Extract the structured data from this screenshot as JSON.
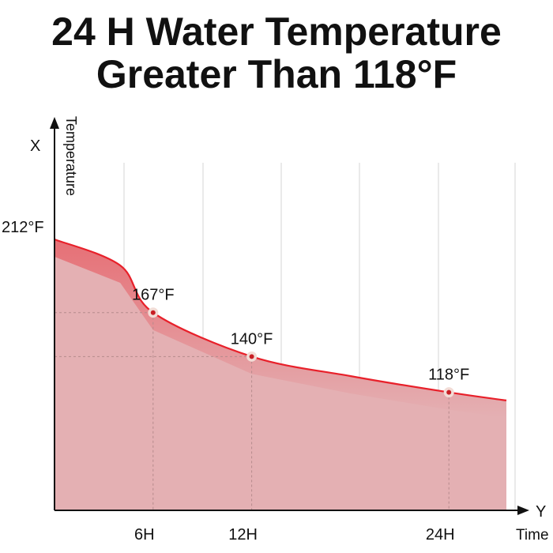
{
  "header": {
    "title_line1": "24 H Water Temperature",
    "title_line2": "Greater Than 118°F"
  },
  "chart_data": {
    "type": "area",
    "x_axis": {
      "letter": "Y",
      "label": "Time"
    },
    "y_axis": {
      "letter": "X",
      "label": "Temperature"
    },
    "y_start_label": "212°F",
    "curve": [
      {
        "t": 0,
        "v": 212
      },
      {
        "t": 4.0,
        "v": 196
      },
      {
        "t": 6,
        "v": 167
      },
      {
        "t": 12,
        "v": 140
      },
      {
        "t": 18,
        "v": 128
      },
      {
        "t": 24,
        "v": 118
      },
      {
        "t": 27.5,
        "v": 113
      }
    ],
    "points": [
      {
        "x_label": "6H",
        "value_label": "167°F",
        "t": 6,
        "v": 167
      },
      {
        "x_label": "12H",
        "value_label": "140°F",
        "t": 12,
        "v": 140
      },
      {
        "x_label": "24H",
        "value_label": "118°F",
        "t": 24,
        "v": 118
      }
    ],
    "colors": {
      "line": "#e8202a",
      "fill": "#e4b0b3",
      "grid": "#d6d6d6",
      "marker_outer": "#f2dcd6",
      "marker_inner": "#c81e24"
    }
  }
}
